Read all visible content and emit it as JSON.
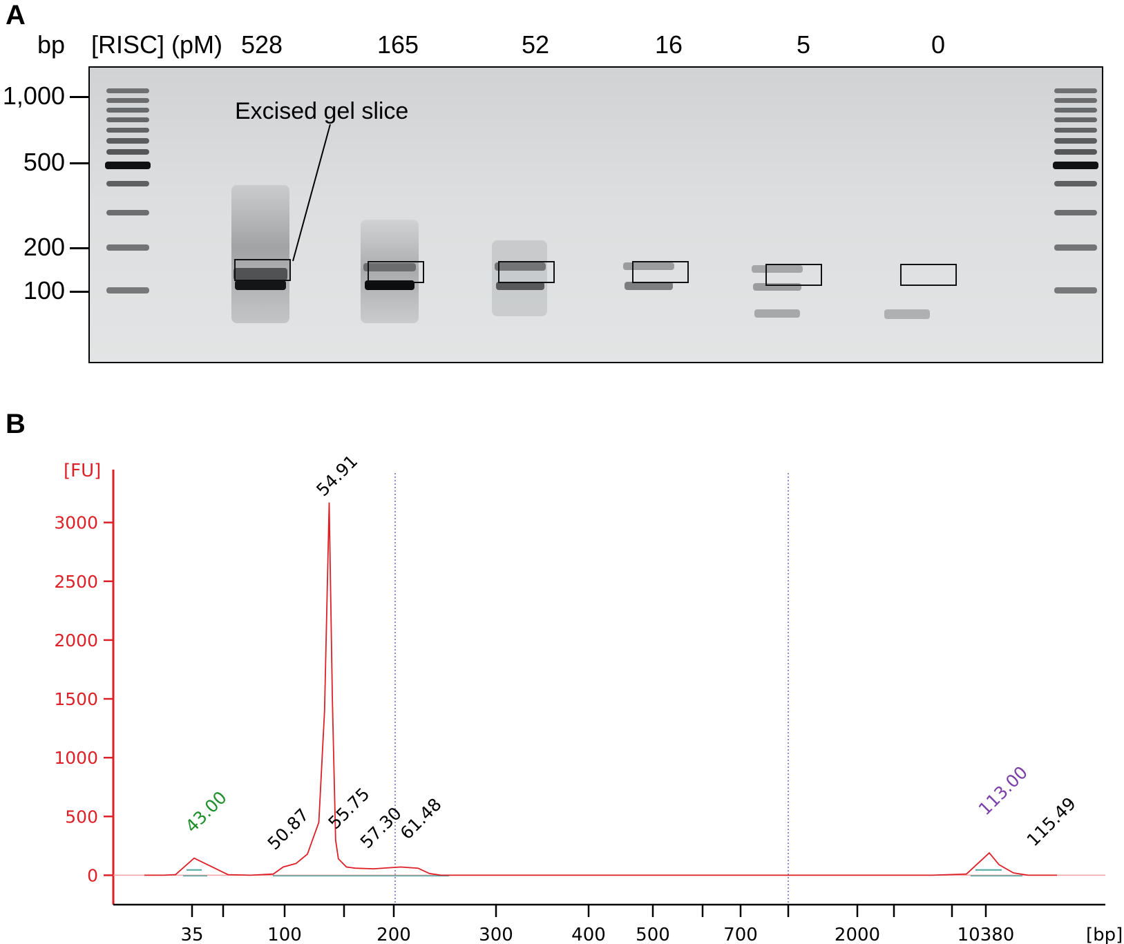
{
  "panel_a": {
    "label": "A",
    "bp_label": "bp",
    "condition_label": "[RISC] (pM)",
    "lanes": [
      "528",
      "165",
      "52",
      "16",
      "5",
      "0"
    ],
    "markers": [
      "1,000",
      "500",
      "200",
      "100"
    ],
    "callout": "Excised gel slice"
  },
  "panel_b": {
    "label": "B"
  },
  "chart_data": {
    "type": "line",
    "ylabel": "[FU]",
    "xlabel": "[bp]",
    "yticks": [
      0,
      500,
      1000,
      1500,
      2000,
      2500,
      3000
    ],
    "ylim": [
      -250,
      3450
    ],
    "xtick_labels": [
      "35",
      "100",
      "200",
      "300",
      "400",
      "500",
      "700",
      "2000",
      "10380"
    ],
    "grid": false,
    "series": [
      {
        "x": [
          35,
          38,
          40,
          43,
          46,
          48,
          50,
          50.87,
          52,
          53,
          54,
          54.5,
          54.91,
          55.2,
          55.5,
          55.75,
          56.5,
          57.3,
          59,
          61.48,
          63,
          64,
          65,
          108,
          111,
          113,
          114,
          115.49,
          117,
          120
        ],
        "y": [
          0,
          0,
          5,
          145,
          5,
          0,
          10,
          70,
          100,
          180,
          450,
          1400,
          3170,
          1500,
          300,
          140,
          70,
          60,
          55,
          70,
          60,
          15,
          0,
          0,
          10,
          190,
          90,
          20,
          0,
          0
        ]
      }
    ],
    "peak_labels": [
      {
        "text": "43.00",
        "x": 43,
        "color": "#1e8f2a"
      },
      {
        "text": "50.87",
        "x": 50.87,
        "color": "#000000"
      },
      {
        "text": "54.91",
        "x": 54.91,
        "color": "#000000"
      },
      {
        "text": "55.75",
        "x": 55.75,
        "color": "#000000"
      },
      {
        "text": "57.30",
        "x": 57.3,
        "color": "#000000"
      },
      {
        "text": "61.48",
        "x": 61.48,
        "color": "#000000"
      },
      {
        "text": "113.00",
        "x": 113,
        "color": "#7a3fa8"
      },
      {
        "text": "115.49",
        "x": 115.49,
        "color": "#000000"
      }
    ],
    "colors": {
      "axis": "#dd1f26",
      "trace": "#dd1f26",
      "baseline": "#4aa7a0",
      "guide": "#4a4ab0"
    }
  }
}
